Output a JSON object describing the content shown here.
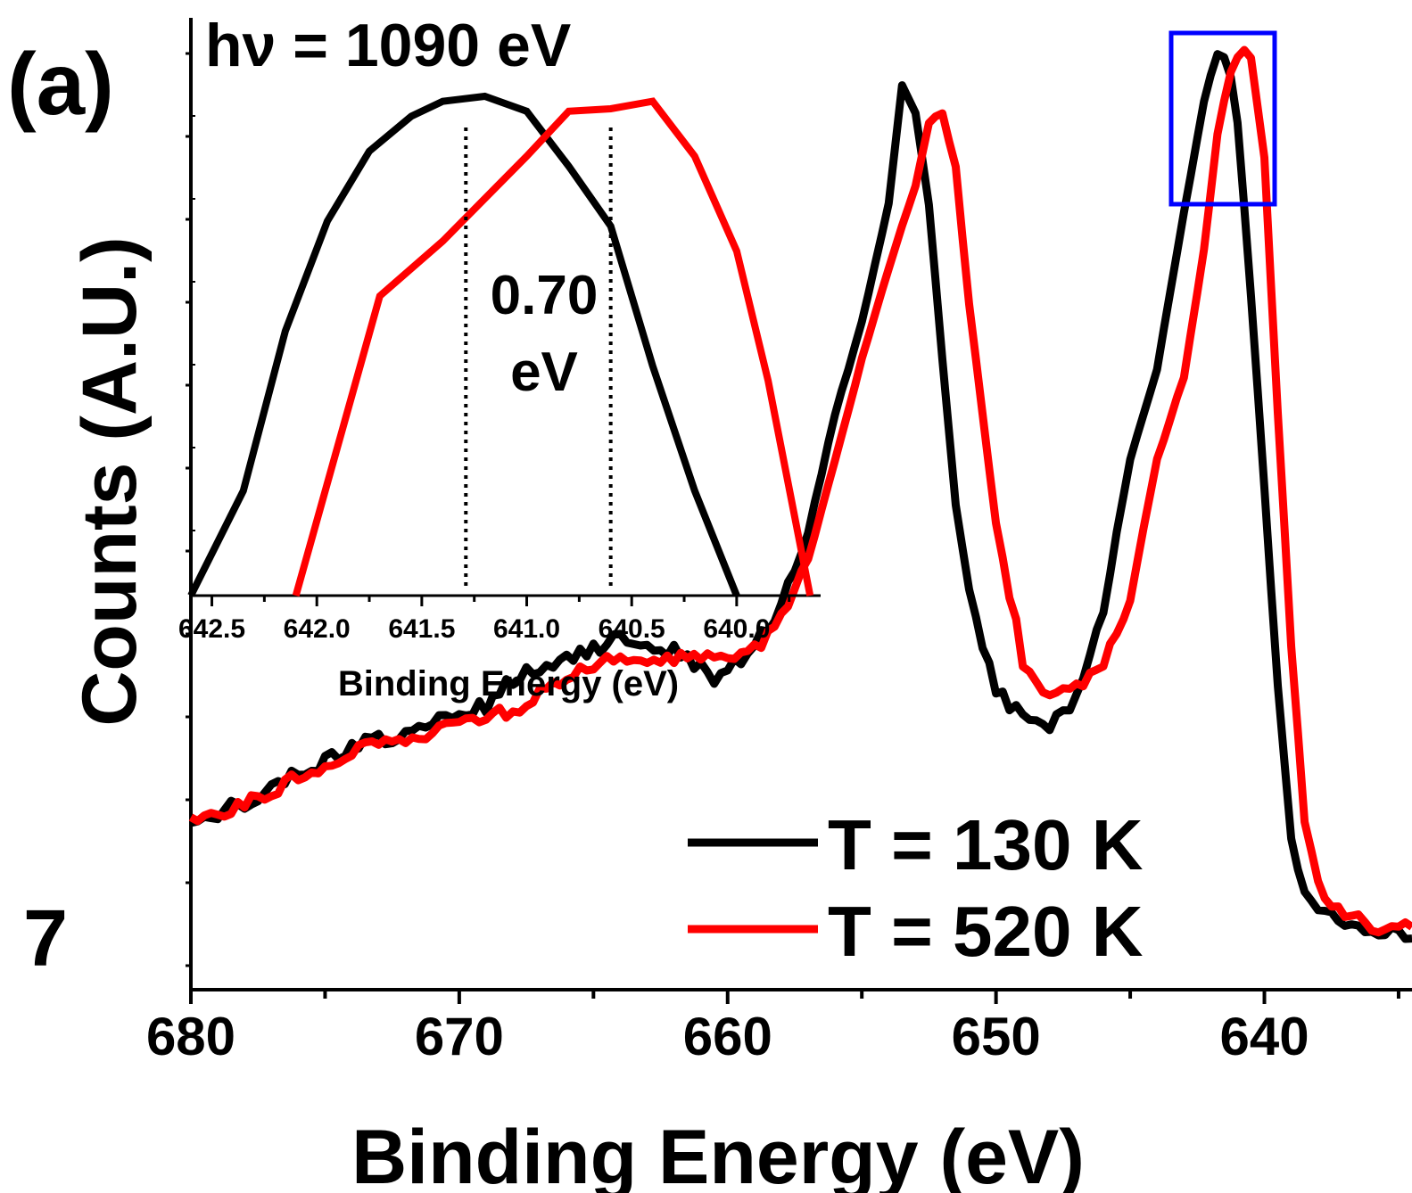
{
  "panel_label": "(a)",
  "photon_energy": "hν = 1090 eV",
  "corner_number": "7",
  "colors": {
    "t130": "#000000",
    "t520": "#ff0000",
    "zoom_box": "#0000ff"
  },
  "chart_data": [
    {
      "type": "line",
      "xlabel": "Binding Energy (eV)",
      "ylabel": "Counts (A.U.)",
      "xlim": [
        680,
        634.5
      ],
      "x_reversed": true,
      "ylim": [
        0,
        100
      ],
      "x_ticks": [
        680,
        670,
        660,
        650,
        640
      ],
      "y_tick_labels": false,
      "legend": {
        "placement": "bottom-right",
        "entries": [
          "T = 130 K",
          "T = 520 K"
        ]
      },
      "series": [
        {
          "name": "T = 130 K",
          "color": "#000000",
          "x": [
            680,
            678,
            676,
            674,
            672,
            670,
            669,
            668,
            666,
            664,
            662,
            660.5,
            660,
            659,
            658,
            657,
            656,
            655,
            654,
            653.5,
            653,
            652.5,
            652,
            651.5,
            651,
            650,
            649,
            648,
            647,
            646,
            645,
            644,
            643,
            642.2,
            641.7,
            641.3,
            641,
            640.5,
            640,
            639.5,
            639,
            638.5,
            638,
            637,
            636,
            635,
            634.5
          ],
          "y": [
            15,
            17.5,
            20.5,
            23.5,
            25,
            27,
            28,
            31,
            33,
            35.5,
            34,
            31,
            32,
            34.5,
            39,
            47,
            60,
            70,
            83,
            96,
            93,
            83,
            66,
            50,
            40,
            30,
            26.5,
            26,
            29,
            39,
            55,
            65,
            82,
            95,
            100,
            98,
            92,
            73,
            52,
            30,
            14,
            7,
            5,
            4.5,
            3.5,
            3,
            3
          ]
        },
        {
          "name": "T = 520 K",
          "color": "#ff0000",
          "x": [
            680,
            678,
            676,
            674,
            672,
            670,
            669,
            668,
            666,
            664,
            662,
            660.5,
            660,
            659,
            658,
            657,
            656,
            655,
            654,
            653,
            652.5,
            652,
            651.5,
            651,
            650,
            649,
            648,
            647,
            646,
            645,
            644,
            643,
            642.2,
            641.7,
            641.2,
            640.8,
            640.5,
            640,
            639.5,
            639,
            638.5,
            638,
            637,
            636,
            635,
            634.5
          ],
          "y": [
            15,
            17.5,
            20,
            23,
            24.5,
            26,
            27,
            27.5,
            31,
            33.5,
            33,
            33,
            33,
            34,
            37.5,
            44,
            55,
            66,
            76,
            85,
            92,
            93,
            87,
            72,
            48,
            33,
            29,
            30,
            33,
            40,
            55,
            64,
            79,
            92,
            98,
            100,
            99,
            88,
            60,
            35,
            15,
            8,
            5,
            4,
            3.5,
            3.5
          ]
        }
      ]
    },
    {
      "type": "line",
      "xlabel": "Binding Energy (eV)",
      "xlim": [
        642.6,
        639.6
      ],
      "x_reversed": true,
      "x_ticks": [
        642.5,
        642.0,
        641.5,
        641.0,
        640.5,
        640.0
      ],
      "x_tick_labels": [
        "642.5",
        "642.0",
        "641.5",
        "641.0",
        "640.5",
        "640.0"
      ],
      "annotation": [
        "0.70",
        "eV"
      ],
      "peak_markers": [
        641.29,
        640.6
      ],
      "series": [
        {
          "name": "T = 130 K",
          "color": "#000000",
          "x": [
            642.6,
            642.35,
            642.15,
            641.95,
            641.75,
            641.55,
            641.4,
            641.2,
            641.0,
            640.8,
            640.6,
            640.4,
            640.2,
            640.0
          ],
          "y": [
            0,
            21,
            53,
            75,
            89,
            96,
            99,
            100,
            97,
            86,
            74,
            46,
            21,
            0
          ]
        },
        {
          "name": "T = 520 K",
          "color": "#ff0000",
          "x": [
            642.1,
            641.7,
            641.4,
            641.0,
            640.8,
            640.6,
            640.4,
            640.2,
            640.0,
            639.85,
            639.65
          ],
          "y": [
            0,
            60,
            71,
            88,
            97,
            97.5,
            99,
            88,
            69,
            43,
            0
          ]
        }
      ]
    }
  ]
}
